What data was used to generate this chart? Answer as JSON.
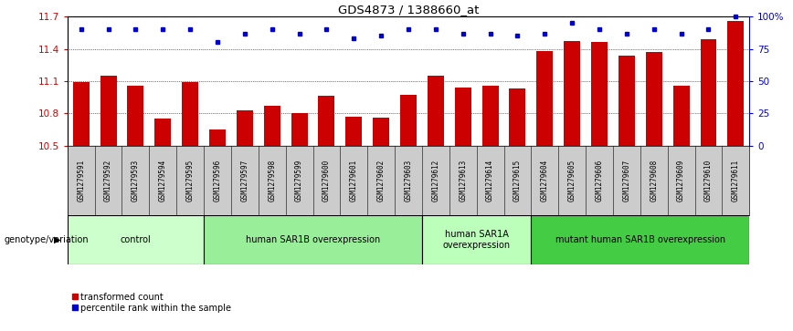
{
  "title": "GDS4873 / 1388660_at",
  "samples": [
    "GSM1279591",
    "GSM1279592",
    "GSM1279593",
    "GSM1279594",
    "GSM1279595",
    "GSM1279596",
    "GSM1279597",
    "GSM1279598",
    "GSM1279599",
    "GSM1279600",
    "GSM1279601",
    "GSM1279602",
    "GSM1279603",
    "GSM1279612",
    "GSM1279613",
    "GSM1279614",
    "GSM1279615",
    "GSM1279604",
    "GSM1279605",
    "GSM1279606",
    "GSM1279607",
    "GSM1279608",
    "GSM1279609",
    "GSM1279610",
    "GSM1279611"
  ],
  "bar_values": [
    11.09,
    11.15,
    11.06,
    10.75,
    11.09,
    10.65,
    10.83,
    10.87,
    10.8,
    10.96,
    10.77,
    10.76,
    10.97,
    11.15,
    11.04,
    11.06,
    11.03,
    11.38,
    11.47,
    11.46,
    11.34,
    11.37,
    11.06,
    11.49,
    11.66
  ],
  "percentile_values": [
    90,
    90,
    90,
    90,
    90,
    80,
    87,
    90,
    87,
    90,
    83,
    85,
    90,
    90,
    87,
    87,
    85,
    87,
    95,
    90,
    87,
    90,
    87,
    90,
    100
  ],
  "ylim": [
    10.5,
    11.7
  ],
  "yticks": [
    10.5,
    10.8,
    11.1,
    11.4,
    11.7
  ],
  "right_ytick_values": [
    0,
    25,
    50,
    75,
    100
  ],
  "right_ytick_labels": [
    "0",
    "25",
    "50",
    "75",
    "100%"
  ],
  "bar_color": "#cc0000",
  "dot_color": "#0000cc",
  "groups": [
    {
      "label": "control",
      "start": 0,
      "end": 5,
      "color": "#ccffcc"
    },
    {
      "label": "human SAR1B overexpression",
      "start": 5,
      "end": 13,
      "color": "#99ee99"
    },
    {
      "label": "human SAR1A\noverexpression",
      "start": 13,
      "end": 17,
      "color": "#bbffbb"
    },
    {
      "label": "mutant human SAR1B overexpression",
      "start": 17,
      "end": 25,
      "color": "#44cc44"
    }
  ],
  "bar_width": 0.6,
  "tick_label_color": "#cc0000",
  "right_tick_color": "#0000cc",
  "legend_label_transformed": "transformed count",
  "legend_label_percentile": "percentile rank within the sample",
  "genotype_label": "genotype/variation",
  "sample_bg_color": "#cccccc",
  "plot_bg_color": "#ffffff"
}
